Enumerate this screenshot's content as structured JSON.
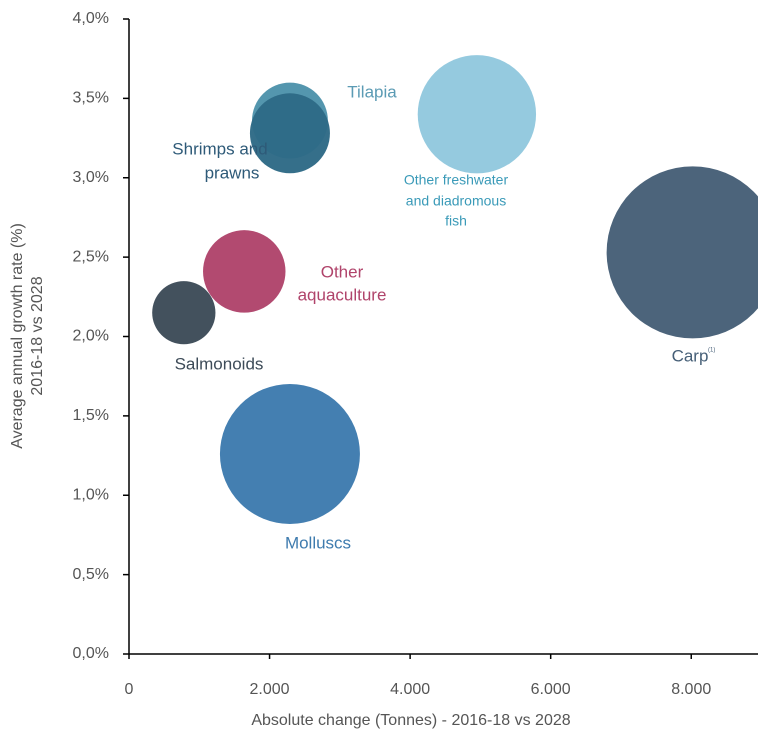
{
  "chart_data": {
    "type": "scatter",
    "x_label": "Absolute change (Tonnes) - 2016-18 vs 2028",
    "y_label": [
      "Average annual growth rate (%)",
      "2016-18 vs 2028"
    ],
    "xlim": [
      0,
      8950
    ],
    "ylim": [
      0,
      4
    ],
    "xticks": [
      0,
      {
        "value": 2000,
        "label": "2.000"
      },
      {
        "value": 4000,
        "label": "4.000"
      },
      {
        "value": 6000,
        "label": "6.000"
      },
      {
        "value": 8000,
        "label": "8.000"
      }
    ],
    "yticks": [
      {
        "value": 0,
        "label": "0,0%"
      },
      {
        "value": 0.5,
        "label": "0,5%"
      },
      {
        "value": 1,
        "label": "1,0%"
      },
      {
        "value": 1.5,
        "label": "1,5%"
      },
      {
        "value": 2,
        "label": "2,0%"
      },
      {
        "value": 2.5,
        "label": "2,5%"
      },
      {
        "value": 3,
        "label": "3,0%"
      },
      {
        "value": 3.5,
        "label": "3,5%"
      },
      {
        "value": 4,
        "label": "4,0%"
      }
    ],
    "points": [
      {
        "label": [
          "Salmonoids"
        ],
        "x": 780,
        "y": 2.15,
        "size": 10,
        "color": "#3d4b58",
        "label_color": "#3d4b58"
      },
      {
        "label": [
          "Other",
          "aquaculture"
        ],
        "x": 1640,
        "y": 2.41,
        "size": 17,
        "color": "#b0446b",
        "label_color": "#b0446b"
      },
      {
        "label": [
          "Tilapia"
        ],
        "x": 2290,
        "y": 3.36,
        "size": 14.4,
        "color": "#4e93ab",
        "label_color": "#5b9bb4"
      },
      {
        "label": [
          "Shrimps and",
          "prawns"
        ],
        "x": 2290,
        "y": 3.28,
        "size": 16,
        "color": "#2e6a86",
        "label_color": "#2e5a78"
      },
      {
        "label": [
          "Other freshwater",
          "and diadromous",
          "fish"
        ],
        "x": 4950,
        "y": 3.4,
        "size": 35,
        "color": "#92c8de",
        "label_color": "#3a9ab8"
      },
      {
        "label": [
          "Carp"
        ],
        "note": "(1)",
        "x": 8020,
        "y": 2.53,
        "size": 74,
        "color": "#465f77",
        "label_color": "#465f77"
      },
      {
        "label": [
          "Molluscs"
        ],
        "x": 2290,
        "y": 1.26,
        "size": 49,
        "color": "#3e7bae",
        "label_color": "#3e7bae"
      }
    ]
  }
}
